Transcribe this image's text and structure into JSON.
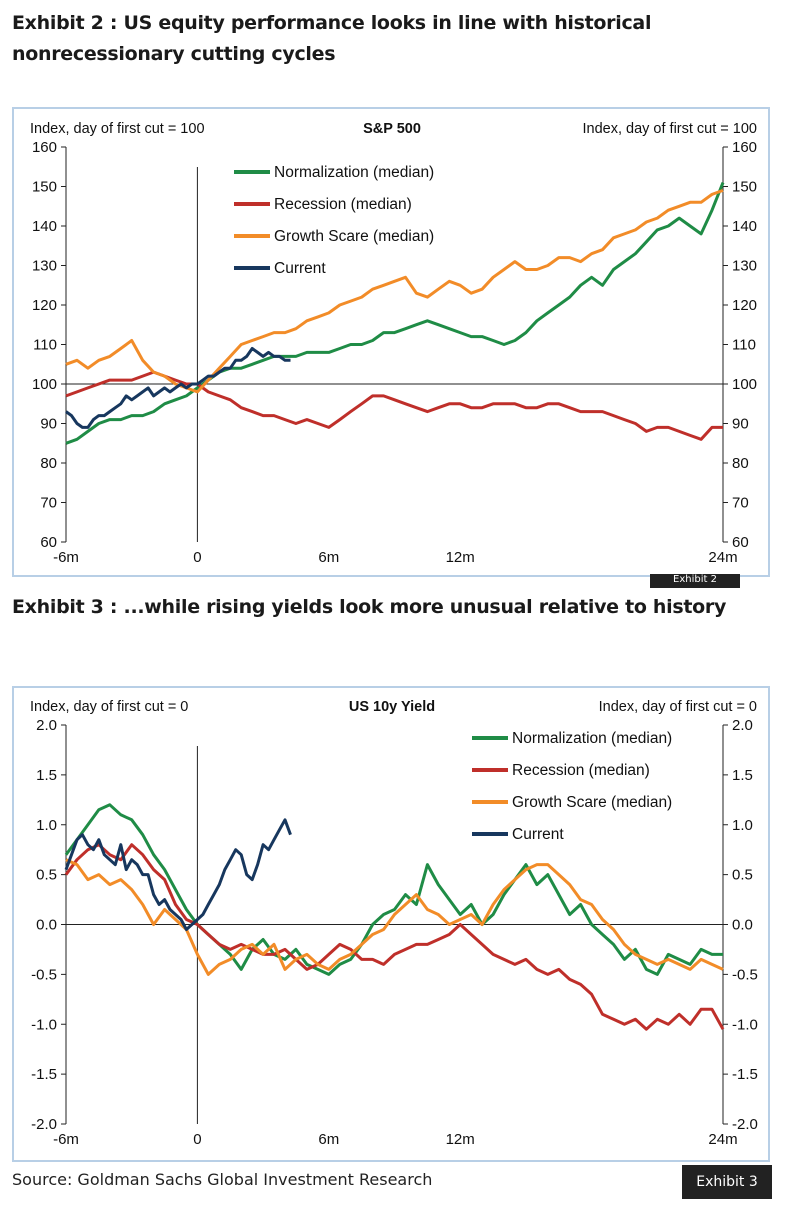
{
  "exhibit2": {
    "title": "Exhibit 2 : US equity performance looks in line with historical nonrecessionary cutting cycles",
    "tab_label": "Exhibit 2"
  },
  "exhibit3": {
    "title": "Exhibit 3 : ...while rising yields look more unusual relative to history",
    "tab_label": "Exhibit 3"
  },
  "source": "Source: Goldman Sachs Global Investment Research",
  "colors": {
    "normalization": "#1f8c46",
    "recession": "#bf2f2a",
    "growth_scare": "#f28c28",
    "current": "#17375e"
  },
  "chart_data": [
    {
      "type": "line",
      "title": "S&P 500",
      "ylabel_left": "Index, day of first cut = 100",
      "ylabel_right": "Index, day of first cut = 100",
      "ylim": [
        60,
        160
      ],
      "yticks": [
        60,
        70,
        80,
        90,
        100,
        110,
        120,
        130,
        140,
        150,
        160
      ],
      "xlim": [
        -6,
        24
      ],
      "xticks": [
        {
          "label": "-6m",
          "value": -6
        },
        {
          "label": "0",
          "value": 0
        },
        {
          "label": "6m",
          "value": 6
        },
        {
          "label": "12m",
          "value": 12
        },
        {
          "label": "24m",
          "value": 24
        }
      ],
      "reference_y": 100,
      "reference_x": 0,
      "legend_position": "top-left",
      "series": [
        {
          "name": "Normalization (median)",
          "color": "#1f8c46",
          "x": [
            -6,
            -5.5,
            -5,
            -4.5,
            -4,
            -3.5,
            -3,
            -2.5,
            -2,
            -1.5,
            -1,
            -0.5,
            0,
            0.5,
            1,
            1.5,
            2,
            2.5,
            3,
            3.5,
            4,
            4.5,
            5,
            5.5,
            6,
            6.5,
            7,
            7.5,
            8,
            8.5,
            9,
            9.5,
            10,
            10.5,
            11,
            11.5,
            12,
            12.5,
            13,
            13.5,
            14,
            14.5,
            15,
            15.5,
            16,
            16.5,
            17,
            17.5,
            18,
            18.5,
            19,
            19.5,
            20,
            20.5,
            21,
            21.5,
            22,
            22.5,
            23,
            23.5,
            24
          ],
          "y": [
            85,
            86,
            88,
            90,
            91,
            91,
            92,
            92,
            93,
            95,
            96,
            97,
            99,
            101,
            103,
            104,
            104,
            105,
            106,
            107,
            107,
            107,
            108,
            108,
            108,
            109,
            110,
            110,
            111,
            113,
            113,
            114,
            115,
            116,
            115,
            114,
            113,
            112,
            112,
            111,
            110,
            111,
            113,
            116,
            118,
            120,
            122,
            125,
            127,
            125,
            129,
            131,
            133,
            136,
            139,
            140,
            142,
            140,
            138,
            144,
            151
          ]
        },
        {
          "name": "Recession (median)",
          "color": "#bf2f2a",
          "x": [
            -6,
            -5.5,
            -5,
            -4.5,
            -4,
            -3.5,
            -3,
            -2.5,
            -2,
            -1.5,
            -1,
            -0.5,
            0,
            0.5,
            1,
            1.5,
            2,
            2.5,
            3,
            3.5,
            4,
            4.5,
            5,
            5.5,
            6,
            6.5,
            7,
            7.5,
            8,
            8.5,
            9,
            9.5,
            10,
            10.5,
            11,
            11.5,
            12,
            12.5,
            13,
            13.5,
            14,
            14.5,
            15,
            15.5,
            16,
            16.5,
            17,
            17.5,
            18,
            18.5,
            19,
            19.5,
            20,
            20.5,
            21,
            21.5,
            22,
            22.5,
            23,
            23.5,
            24
          ],
          "y": [
            97,
            98,
            99,
            100,
            101,
            101,
            101,
            102,
            103,
            102,
            101,
            100,
            100,
            98,
            97,
            96,
            94,
            93,
            92,
            92,
            91,
            90,
            91,
            90,
            89,
            91,
            93,
            95,
            97,
            97,
            96,
            95,
            94,
            93,
            94,
            95,
            95,
            94,
            94,
            95,
            95,
            95,
            94,
            94,
            95,
            95,
            94,
            93,
            93,
            93,
            92,
            91,
            90,
            88,
            89,
            89,
            88,
            87,
            86,
            89,
            89
          ]
        },
        {
          "name": "Growth Scare (median)",
          "color": "#f28c28",
          "x": [
            -6,
            -5.5,
            -5,
            -4.5,
            -4,
            -3.5,
            -3,
            -2.5,
            -2,
            -1.5,
            -1,
            -0.5,
            0,
            0.5,
            1,
            1.5,
            2,
            2.5,
            3,
            3.5,
            4,
            4.5,
            5,
            5.5,
            6,
            6.5,
            7,
            7.5,
            8,
            8.5,
            9,
            9.5,
            10,
            10.5,
            11,
            11.5,
            12,
            12.5,
            13,
            13.5,
            14,
            14.5,
            15,
            15.5,
            16,
            16.5,
            17,
            17.5,
            18,
            18.5,
            19,
            19.5,
            20,
            20.5,
            21,
            21.5,
            22,
            22.5,
            23,
            23.5,
            24
          ],
          "y": [
            105,
            106,
            104,
            106,
            107,
            109,
            111,
            106,
            103,
            102,
            100,
            99,
            98,
            101,
            104,
            107,
            110,
            111,
            112,
            113,
            113,
            114,
            116,
            117,
            118,
            120,
            121,
            122,
            124,
            125,
            126,
            127,
            123,
            122,
            124,
            126,
            125,
            123,
            124,
            127,
            129,
            131,
            129,
            129,
            130,
            132,
            132,
            131,
            133,
            134,
            137,
            138,
            139,
            141,
            142,
            144,
            145,
            146,
            146,
            148,
            149
          ]
        },
        {
          "name": "Current",
          "color": "#17375e",
          "x": [
            -6,
            -5.75,
            -5.5,
            -5.25,
            -5,
            -4.75,
            -4.5,
            -4.25,
            -4,
            -3.75,
            -3.5,
            -3.25,
            -3,
            -2.75,
            -2.5,
            -2.25,
            -2,
            -1.75,
            -1.5,
            -1.25,
            -1,
            -0.75,
            -0.5,
            -0.25,
            0,
            0.25,
            0.5,
            0.75,
            1,
            1.25,
            1.5,
            1.75,
            2,
            2.25,
            2.5,
            2.75,
            3,
            3.25,
            3.5,
            3.75,
            4,
            4.25
          ],
          "y": [
            93,
            92,
            90,
            89,
            89,
            91,
            92,
            92,
            93,
            94,
            95,
            97,
            96,
            97,
            98,
            99,
            97,
            98,
            99,
            98,
            99,
            100,
            99,
            100,
            100,
            101,
            102,
            102,
            103,
            104,
            104,
            106,
            106,
            107,
            109,
            108,
            107,
            108,
            107,
            107,
            106,
            106
          ]
        }
      ]
    },
    {
      "type": "line",
      "title": "US 10y Yield",
      "ylabel_left": "Index, day of first cut = 0",
      "ylabel_right": "Index, day of first cut = 0",
      "ylim": [
        -2.0,
        2.0
      ],
      "yticks": [
        -2.0,
        -1.5,
        -1.0,
        -0.5,
        0.0,
        0.5,
        1.0,
        1.5,
        2.0
      ],
      "xlim": [
        -6,
        24
      ],
      "xticks": [
        {
          "label": "-6m",
          "value": -6
        },
        {
          "label": "0",
          "value": 0
        },
        {
          "label": "6m",
          "value": 6
        },
        {
          "label": "12m",
          "value": 12
        },
        {
          "label": "24m",
          "value": 24
        }
      ],
      "reference_y": 0,
      "reference_x": 0,
      "legend_position": "top-right",
      "series": [
        {
          "name": "Normalization (median)",
          "color": "#1f8c46",
          "x": [
            -6,
            -5.5,
            -5,
            -4.5,
            -4,
            -3.5,
            -3,
            -2.5,
            -2,
            -1.5,
            -1,
            -0.5,
            0,
            0.5,
            1,
            1.5,
            2,
            2.5,
            3,
            3.5,
            4,
            4.5,
            5,
            5.5,
            6,
            6.5,
            7,
            7.5,
            8,
            8.5,
            9,
            9.5,
            10,
            10.5,
            11,
            11.5,
            12,
            12.5,
            13,
            13.5,
            14,
            14.5,
            15,
            15.5,
            16,
            16.5,
            17,
            17.5,
            18,
            18.5,
            19,
            19.5,
            20,
            20.5,
            21,
            21.5,
            22,
            22.5,
            23,
            23.5,
            24
          ],
          "y": [
            0.7,
            0.85,
            1.0,
            1.15,
            1.2,
            1.1,
            1.05,
            0.9,
            0.7,
            0.55,
            0.35,
            0.15,
            0.0,
            -0.1,
            -0.2,
            -0.3,
            -0.45,
            -0.25,
            -0.15,
            -0.3,
            -0.35,
            -0.25,
            -0.4,
            -0.45,
            -0.5,
            -0.4,
            -0.35,
            -0.2,
            0.0,
            0.1,
            0.15,
            0.3,
            0.2,
            0.6,
            0.4,
            0.25,
            0.1,
            0.2,
            0.0,
            0.1,
            0.3,
            0.45,
            0.6,
            0.4,
            0.5,
            0.3,
            0.1,
            0.2,
            0.0,
            -0.1,
            -0.2,
            -0.35,
            -0.25,
            -0.45,
            -0.5,
            -0.3,
            -0.35,
            -0.4,
            -0.25,
            -0.3,
            -0.3
          ]
        },
        {
          "name": "Recession (median)",
          "color": "#bf2f2a",
          "x": [
            -6,
            -5.5,
            -5,
            -4.5,
            -4,
            -3.5,
            -3,
            -2.5,
            -2,
            -1.5,
            -1,
            -0.5,
            0,
            0.5,
            1,
            1.5,
            2,
            2.5,
            3,
            3.5,
            4,
            4.5,
            5,
            5.5,
            6,
            6.5,
            7,
            7.5,
            8,
            8.5,
            9,
            9.5,
            10,
            10.5,
            11,
            11.5,
            12,
            12.5,
            13,
            13.5,
            14,
            14.5,
            15,
            15.5,
            16,
            16.5,
            17,
            17.5,
            18,
            18.5,
            19,
            19.5,
            20,
            20.5,
            21,
            21.5,
            22,
            22.5,
            23,
            23.5,
            24
          ],
          "y": [
            0.5,
            0.65,
            0.75,
            0.8,
            0.7,
            0.65,
            0.8,
            0.7,
            0.55,
            0.45,
            0.2,
            0.05,
            0.0,
            -0.1,
            -0.2,
            -0.25,
            -0.2,
            -0.25,
            -0.3,
            -0.3,
            -0.25,
            -0.35,
            -0.45,
            -0.4,
            -0.3,
            -0.2,
            -0.25,
            -0.35,
            -0.35,
            -0.4,
            -0.3,
            -0.25,
            -0.2,
            -0.2,
            -0.15,
            -0.1,
            0.0,
            -0.1,
            -0.2,
            -0.3,
            -0.35,
            -0.4,
            -0.35,
            -0.45,
            -0.5,
            -0.45,
            -0.55,
            -0.6,
            -0.7,
            -0.9,
            -0.95,
            -1.0,
            -0.95,
            -1.05,
            -0.95,
            -1.0,
            -0.9,
            -1.0,
            -0.85,
            -0.85,
            -1.05
          ]
        },
        {
          "name": "Growth Scare (median)",
          "color": "#f28c28",
          "x": [
            -6,
            -5.5,
            -5,
            -4.5,
            -4,
            -3.5,
            -3,
            -2.5,
            -2,
            -1.5,
            -1,
            -0.5,
            0,
            0.5,
            1,
            1.5,
            2,
            2.5,
            3,
            3.5,
            4,
            4.5,
            5,
            5.5,
            6,
            6.5,
            7,
            7.5,
            8,
            8.5,
            9,
            9.5,
            10,
            10.5,
            11,
            11.5,
            12,
            12.5,
            13,
            13.5,
            14,
            14.5,
            15,
            15.5,
            16,
            16.5,
            17,
            17.5,
            18,
            18.5,
            19,
            19.5,
            20,
            20.5,
            21,
            21.5,
            22,
            22.5,
            23,
            23.5,
            24
          ],
          "y": [
            0.65,
            0.6,
            0.45,
            0.5,
            0.4,
            0.45,
            0.35,
            0.2,
            0.0,
            0.15,
            0.05,
            -0.05,
            -0.3,
            -0.5,
            -0.4,
            -0.35,
            -0.25,
            -0.2,
            -0.3,
            -0.2,
            -0.45,
            -0.35,
            -0.3,
            -0.4,
            -0.45,
            -0.35,
            -0.3,
            -0.2,
            -0.1,
            -0.05,
            0.1,
            0.2,
            0.3,
            0.15,
            0.1,
            0.0,
            0.05,
            0.1,
            0.0,
            0.2,
            0.35,
            0.45,
            0.55,
            0.6,
            0.6,
            0.5,
            0.4,
            0.25,
            0.2,
            0.05,
            -0.05,
            -0.2,
            -0.3,
            -0.35,
            -0.4,
            -0.35,
            -0.4,
            -0.45,
            -0.35,
            -0.4,
            -0.45
          ]
        },
        {
          "name": "Current",
          "color": "#17375e",
          "x": [
            -6,
            -5.75,
            -5.5,
            -5.25,
            -5,
            -4.75,
            -4.5,
            -4.25,
            -4,
            -3.75,
            -3.5,
            -3.25,
            -3,
            -2.75,
            -2.5,
            -2.25,
            -2,
            -1.75,
            -1.5,
            -1.25,
            -1,
            -0.75,
            -0.5,
            -0.25,
            0,
            0.25,
            0.5,
            0.75,
            1,
            1.25,
            1.5,
            1.75,
            2,
            2.25,
            2.5,
            2.75,
            3,
            3.25,
            3.5,
            3.75,
            4,
            4.25
          ],
          "y": [
            0.55,
            0.7,
            0.85,
            0.9,
            0.8,
            0.75,
            0.85,
            0.7,
            0.65,
            0.6,
            0.8,
            0.55,
            0.65,
            0.6,
            0.5,
            0.5,
            0.3,
            0.2,
            0.25,
            0.15,
            0.1,
            0.05,
            -0.05,
            0.0,
            0.05,
            0.1,
            0.2,
            0.3,
            0.4,
            0.55,
            0.65,
            0.75,
            0.7,
            0.5,
            0.45,
            0.6,
            0.8,
            0.75,
            0.85,
            0.95,
            1.05,
            0.9
          ]
        }
      ]
    }
  ]
}
